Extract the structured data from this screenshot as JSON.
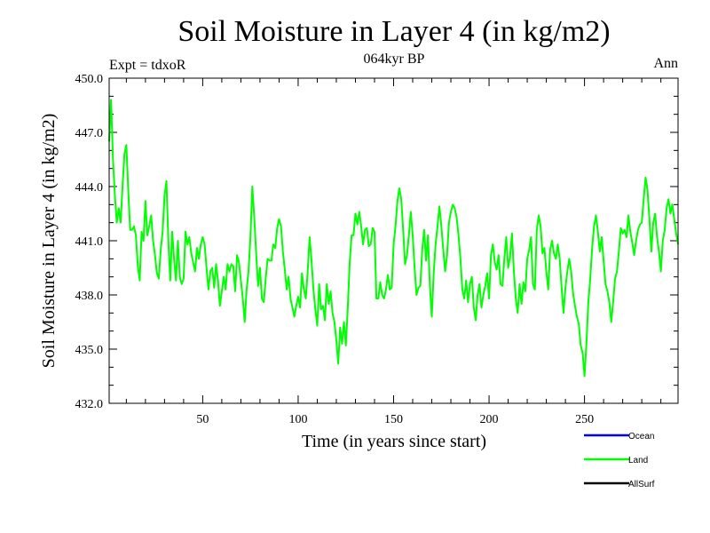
{
  "chart_data": {
    "type": "line",
    "title": "Soil Moisture in Layer 4 (in kg/m2)",
    "subtitle": "064kyr BP",
    "left_label": "Expt = tdxoR",
    "right_label": "Ann",
    "xlabel": "Time (in years since start)",
    "ylabel": "Soil Moisture in Layer 4 (in kg/m2)",
    "xlim": [
      1,
      299
    ],
    "ylim": [
      432.0,
      450.0
    ],
    "x_ticks": [
      50,
      100,
      150,
      200,
      250
    ],
    "x_tick_labels": [
      "50",
      "100",
      "150",
      "200",
      "250"
    ],
    "y_ticks": [
      432.0,
      435.0,
      438.0,
      441.0,
      444.0,
      447.0,
      450.0
    ],
    "y_tick_labels": [
      "432.0",
      "435.0",
      "438.0",
      "441.0",
      "444.0",
      "447.0",
      "450.0"
    ],
    "legend": [
      {
        "name": "Ocean",
        "color": "#0000ff"
      },
      {
        "name": "Land",
        "color": "#00ff00"
      },
      {
        "name": "AllSurf",
        "color": "#000000"
      }
    ],
    "series": [
      {
        "name": "Land",
        "color": "#00ff00",
        "points": [
          [
            1,
            446.5
          ],
          [
            2,
            448.8
          ],
          [
            3,
            445.5
          ],
          [
            4,
            443.5
          ],
          [
            5,
            442.0
          ],
          [
            6,
            442.8
          ],
          [
            7,
            442.0
          ],
          [
            8,
            444.0
          ],
          [
            9,
            445.8
          ],
          [
            10,
            446.3
          ],
          [
            11,
            443.8
          ],
          [
            12,
            441.6
          ],
          [
            13,
            441.6
          ],
          [
            14,
            441.8
          ],
          [
            15,
            441.3
          ],
          [
            16,
            439.6
          ],
          [
            17,
            438.8
          ],
          [
            18,
            441.5
          ],
          [
            19,
            441.0
          ],
          [
            20,
            443.2
          ],
          [
            21,
            441.3
          ],
          [
            22,
            441.8
          ],
          [
            23,
            442.4
          ],
          [
            24,
            441.0
          ],
          [
            25,
            440.2
          ],
          [
            26,
            439.2
          ],
          [
            27,
            438.9
          ],
          [
            28,
            440.5
          ],
          [
            29,
            441.5
          ],
          [
            30,
            443.5
          ],
          [
            31,
            444.3
          ],
          [
            32,
            441.0
          ],
          [
            33,
            438.8
          ],
          [
            34,
            441.5
          ],
          [
            35,
            440.0
          ],
          [
            36,
            438.8
          ],
          [
            37,
            441.0
          ],
          [
            38,
            439.0
          ],
          [
            39,
            438.6
          ],
          [
            40,
            438.9
          ],
          [
            41,
            441.5
          ],
          [
            42,
            440.8
          ],
          [
            43,
            441.2
          ],
          [
            44,
            440.3
          ],
          [
            45,
            439.8
          ],
          [
            46,
            439.3
          ],
          [
            47,
            440.6
          ],
          [
            48,
            440.0
          ],
          [
            49,
            440.8
          ],
          [
            50,
            441.2
          ],
          [
            51,
            440.8
          ],
          [
            52,
            439.5
          ],
          [
            53,
            438.3
          ],
          [
            54,
            439.3
          ],
          [
            55,
            439.5
          ],
          [
            56,
            438.4
          ],
          [
            57,
            439.7
          ],
          [
            58,
            438.8
          ],
          [
            59,
            437.4
          ],
          [
            60,
            438.2
          ],
          [
            61,
            439.0
          ],
          [
            62,
            438.3
          ],
          [
            63,
            439.7
          ],
          [
            64,
            439.3
          ],
          [
            65,
            439.7
          ],
          [
            66,
            439.6
          ],
          [
            67,
            438.2
          ],
          [
            68,
            440.2
          ],
          [
            69,
            439.8
          ],
          [
            70,
            438.8
          ],
          [
            71,
            437.8
          ],
          [
            72,
            436.5
          ],
          [
            73,
            438.3
          ],
          [
            74,
            439.3
          ],
          [
            75,
            441.2
          ],
          [
            76,
            444.0
          ],
          [
            77,
            442.3
          ],
          [
            78,
            440.3
          ],
          [
            79,
            438.5
          ],
          [
            80,
            439.5
          ],
          [
            81,
            437.8
          ],
          [
            82,
            437.6
          ],
          [
            83,
            438.9
          ],
          [
            84,
            440.0
          ],
          [
            85,
            439.9
          ],
          [
            86,
            439.9
          ],
          [
            87,
            440.8
          ],
          [
            88,
            440.6
          ],
          [
            89,
            441.7
          ],
          [
            90,
            442.2
          ],
          [
            91,
            441.8
          ],
          [
            92,
            440.4
          ],
          [
            93,
            439.4
          ],
          [
            94,
            438.3
          ],
          [
            95,
            439.0
          ],
          [
            96,
            437.8
          ],
          [
            97,
            437.3
          ],
          [
            98,
            436.8
          ],
          [
            99,
            437.4
          ],
          [
            100,
            437.9
          ],
          [
            101,
            437.3
          ],
          [
            102,
            439.2
          ],
          [
            103,
            438.3
          ],
          [
            104,
            437.8
          ],
          [
            105,
            439.3
          ],
          [
            106,
            441.2
          ],
          [
            107,
            439.9
          ],
          [
            108,
            438.3
          ],
          [
            109,
            437.2
          ],
          [
            110,
            436.3
          ],
          [
            111,
            438.6
          ],
          [
            112,
            437.2
          ],
          [
            113,
            437.4
          ],
          [
            114,
            436.6
          ],
          [
            115,
            438.6
          ],
          [
            116,
            437.5
          ],
          [
            117,
            438.2
          ],
          [
            118,
            437.0
          ],
          [
            119,
            436.5
          ],
          [
            120,
            435.5
          ],
          [
            121,
            434.2
          ],
          [
            122,
            436.2
          ],
          [
            123,
            435.3
          ],
          [
            124,
            436.5
          ],
          [
            125,
            435.2
          ],
          [
            126,
            437.3
          ],
          [
            127,
            439.8
          ],
          [
            128,
            441.3
          ],
          [
            129,
            441.3
          ],
          [
            130,
            442.5
          ],
          [
            131,
            441.9
          ],
          [
            132,
            442.6
          ],
          [
            133,
            441.8
          ],
          [
            134,
            440.8
          ],
          [
            135,
            441.6
          ],
          [
            136,
            441.7
          ],
          [
            137,
            440.7
          ],
          [
            138,
            440.8
          ],
          [
            139,
            441.7
          ],
          [
            140,
            441.5
          ],
          [
            141,
            437.8
          ],
          [
            142,
            437.8
          ],
          [
            143,
            438.7
          ],
          [
            144,
            438.0
          ],
          [
            145,
            437.8
          ],
          [
            146,
            438.3
          ],
          [
            147,
            439.1
          ],
          [
            148,
            438.3
          ],
          [
            149,
            438.4
          ],
          [
            150,
            440.8
          ],
          [
            151,
            441.8
          ],
          [
            152,
            443.2
          ],
          [
            153,
            443.9
          ],
          [
            154,
            443.3
          ],
          [
            155,
            441.6
          ],
          [
            156,
            439.7
          ],
          [
            157,
            440.2
          ],
          [
            158,
            441.3
          ],
          [
            159,
            442.6
          ],
          [
            160,
            441.3
          ],
          [
            161,
            439.5
          ],
          [
            162,
            438.0
          ],
          [
            163,
            438.4
          ],
          [
            164,
            438.5
          ],
          [
            165,
            440.5
          ],
          [
            166,
            441.6
          ],
          [
            167,
            439.9
          ],
          [
            168,
            441.3
          ],
          [
            169,
            438.5
          ],
          [
            170,
            436.8
          ],
          [
            171,
            439.2
          ],
          [
            172,
            440.8
          ],
          [
            173,
            441.8
          ],
          [
            174,
            442.9
          ],
          [
            175,
            441.8
          ],
          [
            176,
            440.5
          ],
          [
            177,
            439.3
          ],
          [
            178,
            440.2
          ],
          [
            179,
            442.0
          ],
          [
            180,
            442.6
          ],
          [
            181,
            443.0
          ],
          [
            182,
            442.8
          ],
          [
            183,
            442.3
          ],
          [
            184,
            441.3
          ],
          [
            185,
            440.0
          ],
          [
            186,
            438.3
          ],
          [
            187,
            437.8
          ],
          [
            188,
            438.8
          ],
          [
            189,
            437.6
          ],
          [
            190,
            438.6
          ],
          [
            191,
            439.0
          ],
          [
            192,
            437.3
          ],
          [
            193,
            436.6
          ],
          [
            194,
            438.0
          ],
          [
            195,
            438.6
          ],
          [
            196,
            437.3
          ],
          [
            197,
            438.0
          ],
          [
            198,
            438.5
          ],
          [
            199,
            439.2
          ],
          [
            200,
            437.8
          ],
          [
            201,
            440.2
          ],
          [
            202,
            440.8
          ],
          [
            203,
            439.8
          ],
          [
            204,
            439.4
          ],
          [
            205,
            440.2
          ],
          [
            206,
            438.6
          ],
          [
            207,
            438.5
          ],
          [
            208,
            440.0
          ],
          [
            209,
            441.2
          ],
          [
            210,
            439.5
          ],
          [
            211,
            440.1
          ],
          [
            212,
            441.4
          ],
          [
            213,
            439.3
          ],
          [
            214,
            437.8
          ],
          [
            215,
            437.0
          ],
          [
            216,
            438.6
          ],
          [
            217,
            437.5
          ],
          [
            218,
            438.7
          ],
          [
            219,
            438.2
          ],
          [
            220,
            440.0
          ],
          [
            221,
            440.5
          ],
          [
            222,
            441.2
          ],
          [
            223,
            438.6
          ],
          [
            224,
            438.3
          ],
          [
            225,
            441.6
          ],
          [
            226,
            442.4
          ],
          [
            227,
            441.8
          ],
          [
            228,
            440.3
          ],
          [
            229,
            440.6
          ],
          [
            230,
            439.3
          ],
          [
            231,
            438.3
          ],
          [
            232,
            440.5
          ],
          [
            233,
            441.0
          ],
          [
            234,
            440.3
          ],
          [
            235,
            440.0
          ],
          [
            236,
            440.8
          ],
          [
            237,
            440.0
          ],
          [
            238,
            438.4
          ],
          [
            239,
            437.0
          ],
          [
            240,
            438.4
          ],
          [
            241,
            439.3
          ],
          [
            242,
            440.0
          ],
          [
            243,
            439.3
          ],
          [
            244,
            438.1
          ],
          [
            245,
            437.4
          ],
          [
            246,
            436.8
          ],
          [
            247,
            436.4
          ],
          [
            248,
            435.2
          ],
          [
            249,
            434.8
          ],
          [
            250,
            433.5
          ],
          [
            251,
            435.3
          ],
          [
            252,
            437.6
          ],
          [
            253,
            438.9
          ],
          [
            254,
            440.6
          ],
          [
            255,
            441.8
          ],
          [
            256,
            442.4
          ],
          [
            257,
            441.5
          ],
          [
            258,
            440.4
          ],
          [
            259,
            441.2
          ],
          [
            260,
            439.9
          ],
          [
            261,
            438.6
          ],
          [
            262,
            438.2
          ],
          [
            263,
            437.6
          ],
          [
            264,
            436.5
          ],
          [
            265,
            437.6
          ],
          [
            266,
            438.9
          ],
          [
            267,
            439.3
          ],
          [
            268,
            440.4
          ],
          [
            269,
            441.7
          ],
          [
            270,
            441.4
          ],
          [
            271,
            441.6
          ],
          [
            272,
            441.2
          ],
          [
            273,
            442.4
          ],
          [
            274,
            441.5
          ],
          [
            275,
            440.9
          ],
          [
            276,
            440.2
          ],
          [
            277,
            441.0
          ],
          [
            278,
            441.6
          ],
          [
            279,
            441.9
          ],
          [
            280,
            442.0
          ],
          [
            281,
            443.3
          ],
          [
            282,
            444.5
          ],
          [
            283,
            443.8
          ],
          [
            284,
            442.2
          ],
          [
            285,
            440.4
          ],
          [
            286,
            442.0
          ],
          [
            287,
            442.5
          ],
          [
            288,
            441.2
          ],
          [
            289,
            440.4
          ],
          [
            290,
            439.3
          ],
          [
            291,
            441.0
          ],
          [
            292,
            441.6
          ],
          [
            293,
            442.8
          ],
          [
            294,
            443.3
          ],
          [
            295,
            442.5
          ],
          [
            296,
            443.0
          ],
          [
            297,
            442.2
          ],
          [
            298,
            441.4
          ],
          [
            299,
            440.8
          ]
        ]
      }
    ]
  }
}
